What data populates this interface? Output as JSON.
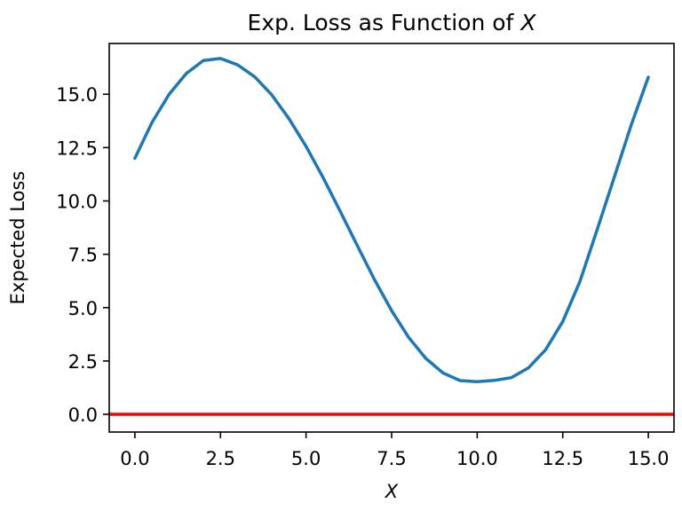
{
  "chart_data": {
    "type": "line",
    "title": {
      "text": "Exp. Loss as Function of ",
      "var": "X"
    },
    "xlabel": "X",
    "ylabel": "Expected Loss",
    "xlim": [
      -0.75,
      15.75
    ],
    "ylim": [
      -0.83,
      17.38
    ],
    "xticks": [
      0,
      2.5,
      5,
      7.5,
      10,
      12.5,
      15
    ],
    "xtick_labels": [
      "0.0",
      "2.5",
      "5.0",
      "7.5",
      "10.0",
      "12.5",
      "15.0"
    ],
    "yticks": [
      0,
      2.5,
      5,
      7.5,
      10,
      12.5,
      15
    ],
    "ytick_labels": [
      "0.0",
      "2.5",
      "5.0",
      "7.5",
      "10.0",
      "12.5",
      "15.0"
    ],
    "grid": false,
    "series": [
      {
        "color": "#1f77b4",
        "x": [
          0,
          0.5,
          1,
          1.5,
          2,
          2.5,
          3,
          3.5,
          4,
          4.5,
          5,
          5.5,
          6,
          6.5,
          7,
          7.5,
          8,
          8.5,
          9,
          9.5,
          10,
          10.5,
          11,
          11.5,
          12,
          12.5,
          13,
          13.5,
          14,
          14.5,
          15
        ],
        "y": [
          12.0,
          13.68,
          15.0,
          15.97,
          16.58,
          16.68,
          16.38,
          15.82,
          14.97,
          13.86,
          12.56,
          11.09,
          9.51,
          7.9,
          6.31,
          4.86,
          3.6,
          2.62,
          1.94,
          1.58,
          1.53,
          1.59,
          1.72,
          2.18,
          3.03,
          4.35,
          6.22,
          8.63,
          11.09,
          13.56,
          15.8
        ]
      }
    ],
    "hlines": [
      {
        "y": 0,
        "color": "#ff0000"
      }
    ]
  }
}
